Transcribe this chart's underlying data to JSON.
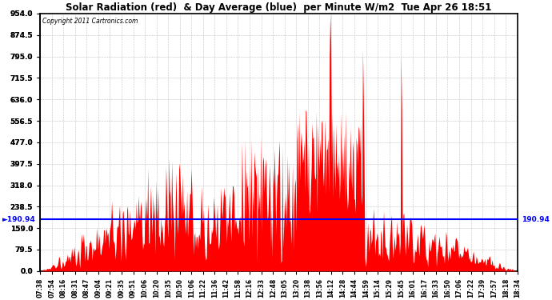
{
  "title": "Solar Radiation (red)  & Day Average (blue)  per Minute W/m2  Tue Apr 26 18:51",
  "copyright_text": "Copyright 2011 Cartronics.com",
  "y_max": 954.0,
  "y_min": 0.0,
  "y_ticks": [
    0.0,
    79.5,
    159.0,
    238.5,
    318.0,
    397.5,
    477.0,
    556.5,
    636.0,
    715.5,
    795.0,
    874.5,
    954.0
  ],
  "avg_value": 190.94,
  "bar_color": "#FF0000",
  "avg_line_color": "#0000FF",
  "background_color": "#FFFFFF",
  "grid_color": "#BBBBBB",
  "x_labels": [
    "07:38",
    "07:54",
    "08:16",
    "08:31",
    "08:47",
    "09:04",
    "09:21",
    "09:35",
    "09:51",
    "10:06",
    "10:20",
    "10:35",
    "10:50",
    "11:06",
    "11:22",
    "11:36",
    "11:42",
    "11:58",
    "12:16",
    "12:33",
    "12:48",
    "13:05",
    "13:20",
    "13:38",
    "13:56",
    "14:12",
    "14:28",
    "14:44",
    "14:59",
    "15:14",
    "15:29",
    "15:45",
    "16:01",
    "16:17",
    "16:33",
    "16:50",
    "17:06",
    "17:22",
    "17:39",
    "17:57",
    "18:18",
    "18:34"
  ],
  "figsize": [
    6.9,
    3.75
  ],
  "dpi": 100
}
